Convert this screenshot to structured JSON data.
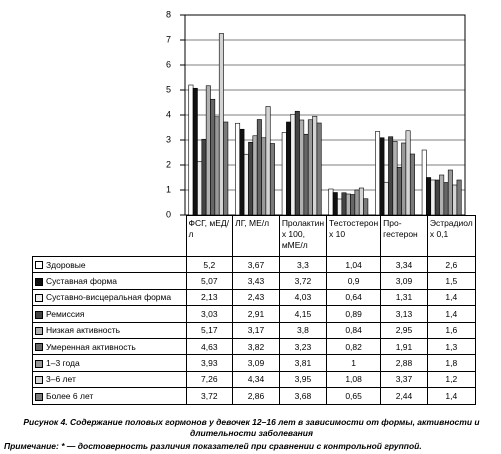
{
  "chart_data": {
    "type": "bar",
    "caption": "Рисунок 4. Содержание половых гормонов у девочек 12–16 лет в зависимости от формы, активности и длительности заболевания",
    "note": "Примечание: * — достоверность различия показателей при сравнении с контрольной группой.",
    "categories": [
      "ФСГ, мЕД/л",
      "ЛГ, МЕ/л",
      "Пролактин x 100, мМЕ/л",
      "Тестостерон x 10",
      "Про-гестерон",
      "Эстрадиол x 0,1"
    ],
    "ylim": [
      0,
      8
    ],
    "yticks": [
      0,
      1,
      2,
      3,
      4,
      5,
      6,
      7,
      8
    ],
    "grid": true,
    "series": [
      {
        "name": "Здоровые",
        "color": "#ffffff",
        "values": [
          5.2,
          3.67,
          3.3,
          1.04,
          3.34,
          2.6
        ],
        "value_labels": [
          "5,2",
          "3,67",
          "3,3",
          "1,04",
          "3,34",
          "2,6"
        ]
      },
      {
        "name": "Суставная форма",
        "color": "#111111",
        "values": [
          5.07,
          3.43,
          3.72,
          0.9,
          3.09,
          1.5
        ],
        "value_labels": [
          "5,07",
          "3,43",
          "3,72",
          "0,9",
          "3,09",
          "1,5"
        ]
      },
      {
        "name": "Суставно-висцеральная форма",
        "color": "#eeeeee",
        "values": [
          2.13,
          2.43,
          4.03,
          0.64,
          1.31,
          1.4
        ],
        "value_labels": [
          "2,13",
          "2,43",
          "4,03",
          "0,64",
          "1,31",
          "1,4"
        ]
      },
      {
        "name": "Ремиссия",
        "color": "#444444",
        "values": [
          3.03,
          2.91,
          4.15,
          0.89,
          3.13,
          1.4
        ],
        "value_labels": [
          "3,03",
          "2,91",
          "4,15",
          "0,89",
          "3,13",
          "1,4"
        ]
      },
      {
        "name": "Низкая активность",
        "color": "#b0b0b0",
        "values": [
          5.17,
          3.17,
          3.8,
          0.84,
          2.95,
          1.6
        ],
        "value_labels": [
          "5,17",
          "3,17",
          "3,8",
          "0,84",
          "2,95",
          "1,6"
        ]
      },
      {
        "name": "Умеренная активность",
        "color": "#666666",
        "values": [
          4.63,
          3.82,
          3.23,
          0.82,
          1.91,
          1.3
        ],
        "value_labels": [
          "4,63",
          "3,82",
          "3,23",
          "0,82",
          "1,91",
          "1,3"
        ]
      },
      {
        "name": "1–3 года",
        "color": "#999999",
        "values": [
          3.93,
          3.09,
          3.81,
          1,
          2.88,
          1.8
        ],
        "value_labels": [
          "3,93",
          "3,09",
          "3,81",
          "1",
          "2,88",
          "1,8"
        ]
      },
      {
        "name": "3–6 лет",
        "color": "#d4d4d4",
        "values": [
          7.26,
          4.34,
          3.95,
          1.08,
          3.37,
          1.2
        ],
        "value_labels": [
          "7,26",
          "4,34",
          "3,95",
          "1,08",
          "3,37",
          "1,2"
        ]
      },
      {
        "name": "Более 6 лет",
        "color": "#7a7a7a",
        "values": [
          3.72,
          2.86,
          3.68,
          0.65,
          2.44,
          1.4
        ],
        "value_labels": [
          "3,72",
          "2,86",
          "3,68",
          "0,65",
          "2,44",
          "1,4"
        ]
      }
    ]
  }
}
